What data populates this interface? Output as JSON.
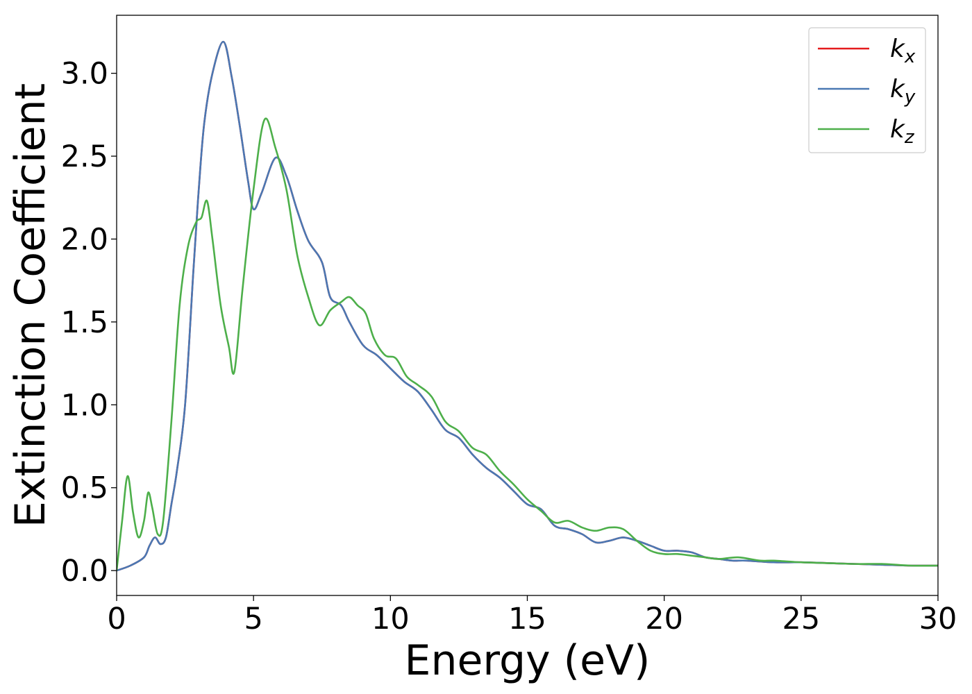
{
  "chart_data": {
    "type": "line",
    "xlabel": "Energy (eV)",
    "ylabel": "Extinction Coefficient",
    "xlim": [
      0,
      30
    ],
    "ylim": [
      -0.15,
      3.35
    ],
    "xticks": [
      0,
      5,
      10,
      15,
      20,
      25,
      30
    ],
    "yticks": [
      0.0,
      0.5,
      1.0,
      1.5,
      2.0,
      2.5,
      3.0
    ],
    "xtick_labels": [
      "0",
      "5",
      "10",
      "15",
      "20",
      "25",
      "30"
    ],
    "ytick_labels": [
      "0.0",
      "0.5",
      "1.0",
      "1.5",
      "2.0",
      "2.5",
      "3.0"
    ],
    "grid": false,
    "legend_position": "top-right",
    "series": [
      {
        "name": "k_x",
        "legend_base": "k",
        "legend_sub": "x",
        "color": "#e41a1c",
        "points": [
          [
            0,
            0
          ],
          [
            0.5,
            0.03
          ],
          [
            1,
            0.08
          ],
          [
            1.2,
            0.15
          ],
          [
            1.4,
            0.2
          ],
          [
            1.6,
            0.16
          ],
          [
            1.8,
            0.2
          ],
          [
            2,
            0.4
          ],
          [
            2.2,
            0.6
          ],
          [
            2.5,
            1.0
          ],
          [
            2.8,
            1.8
          ],
          [
            3,
            2.3
          ],
          [
            3.2,
            2.7
          ],
          [
            3.5,
            3.0
          ],
          [
            3.9,
            3.19
          ],
          [
            4.2,
            2.98
          ],
          [
            4.5,
            2.68
          ],
          [
            4.8,
            2.35
          ],
          [
            5.0,
            2.18
          ],
          [
            5.3,
            2.28
          ],
          [
            5.8,
            2.49
          ],
          [
            6.2,
            2.38
          ],
          [
            6.6,
            2.17
          ],
          [
            7,
            1.99
          ],
          [
            7.5,
            1.86
          ],
          [
            7.8,
            1.65
          ],
          [
            8.2,
            1.6
          ],
          [
            8.5,
            1.5
          ],
          [
            9,
            1.36
          ],
          [
            9.5,
            1.3
          ],
          [
            10,
            1.22
          ],
          [
            10.5,
            1.14
          ],
          [
            11,
            1.08
          ],
          [
            11.5,
            0.97
          ],
          [
            12,
            0.85
          ],
          [
            12.5,
            0.8
          ],
          [
            13,
            0.7
          ],
          [
            13.5,
            0.62
          ],
          [
            14,
            0.56
          ],
          [
            14.5,
            0.48
          ],
          [
            15,
            0.4
          ],
          [
            15.5,
            0.37
          ],
          [
            16,
            0.27
          ],
          [
            16.5,
            0.25
          ],
          [
            17,
            0.22
          ],
          [
            17.5,
            0.17
          ],
          [
            18,
            0.18
          ],
          [
            18.5,
            0.2
          ],
          [
            19,
            0.18
          ],
          [
            19.5,
            0.15
          ],
          [
            20,
            0.12
          ],
          [
            20.5,
            0.12
          ],
          [
            21,
            0.11
          ],
          [
            21.5,
            0.08
          ],
          [
            22,
            0.07
          ],
          [
            22.5,
            0.06
          ],
          [
            23,
            0.06
          ],
          [
            24,
            0.05
          ],
          [
            25,
            0.05
          ],
          [
            26,
            0.045
          ],
          [
            27,
            0.04
          ],
          [
            28,
            0.035
          ],
          [
            29,
            0.03
          ],
          [
            30,
            0.03
          ]
        ]
      },
      {
        "name": "k_y",
        "legend_base": "k",
        "legend_sub": "y",
        "color": "#4a78b3",
        "points": [
          [
            0,
            0
          ],
          [
            0.5,
            0.03
          ],
          [
            1,
            0.08
          ],
          [
            1.2,
            0.15
          ],
          [
            1.4,
            0.2
          ],
          [
            1.6,
            0.16
          ],
          [
            1.8,
            0.2
          ],
          [
            2,
            0.4
          ],
          [
            2.2,
            0.6
          ],
          [
            2.5,
            1.0
          ],
          [
            2.8,
            1.8
          ],
          [
            3,
            2.3
          ],
          [
            3.2,
            2.7
          ],
          [
            3.5,
            3.0
          ],
          [
            3.9,
            3.19
          ],
          [
            4.2,
            2.98
          ],
          [
            4.5,
            2.68
          ],
          [
            4.8,
            2.35
          ],
          [
            5.0,
            2.18
          ],
          [
            5.3,
            2.28
          ],
          [
            5.8,
            2.49
          ],
          [
            6.2,
            2.38
          ],
          [
            6.6,
            2.17
          ],
          [
            7,
            1.99
          ],
          [
            7.5,
            1.86
          ],
          [
            7.8,
            1.65
          ],
          [
            8.2,
            1.6
          ],
          [
            8.5,
            1.5
          ],
          [
            9,
            1.36
          ],
          [
            9.5,
            1.3
          ],
          [
            10,
            1.22
          ],
          [
            10.5,
            1.14
          ],
          [
            11,
            1.08
          ],
          [
            11.5,
            0.97
          ],
          [
            12,
            0.85
          ],
          [
            12.5,
            0.8
          ],
          [
            13,
            0.7
          ],
          [
            13.5,
            0.62
          ],
          [
            14,
            0.56
          ],
          [
            14.5,
            0.48
          ],
          [
            15,
            0.4
          ],
          [
            15.5,
            0.37
          ],
          [
            16,
            0.27
          ],
          [
            16.5,
            0.25
          ],
          [
            17,
            0.22
          ],
          [
            17.5,
            0.17
          ],
          [
            18,
            0.18
          ],
          [
            18.5,
            0.2
          ],
          [
            19,
            0.18
          ],
          [
            19.5,
            0.15
          ],
          [
            20,
            0.12
          ],
          [
            20.5,
            0.12
          ],
          [
            21,
            0.11
          ],
          [
            21.5,
            0.08
          ],
          [
            22,
            0.07
          ],
          [
            22.5,
            0.06
          ],
          [
            23,
            0.06
          ],
          [
            24,
            0.05
          ],
          [
            25,
            0.05
          ],
          [
            26,
            0.045
          ],
          [
            27,
            0.04
          ],
          [
            28,
            0.035
          ],
          [
            29,
            0.03
          ],
          [
            30,
            0.03
          ]
        ]
      },
      {
        "name": "k_z",
        "legend_base": "k",
        "legend_sub": "z",
        "color": "#4daf4a",
        "points": [
          [
            0,
            0
          ],
          [
            0.2,
            0.3
          ],
          [
            0.4,
            0.57
          ],
          [
            0.6,
            0.35
          ],
          [
            0.8,
            0.2
          ],
          [
            1,
            0.3
          ],
          [
            1.15,
            0.47
          ],
          [
            1.3,
            0.38
          ],
          [
            1.5,
            0.22
          ],
          [
            1.7,
            0.3
          ],
          [
            2,
            0.9
          ],
          [
            2.3,
            1.6
          ],
          [
            2.6,
            1.95
          ],
          [
            2.9,
            2.1
          ],
          [
            3.1,
            2.13
          ],
          [
            3.3,
            2.23
          ],
          [
            3.5,
            2.0
          ],
          [
            3.8,
            1.6
          ],
          [
            4.1,
            1.35
          ],
          [
            4.3,
            1.2
          ],
          [
            4.6,
            1.7
          ],
          [
            5,
            2.3
          ],
          [
            5.4,
            2.72
          ],
          [
            5.8,
            2.55
          ],
          [
            6.2,
            2.3
          ],
          [
            6.6,
            1.9
          ],
          [
            7,
            1.65
          ],
          [
            7.4,
            1.48
          ],
          [
            7.8,
            1.57
          ],
          [
            8.2,
            1.62
          ],
          [
            8.5,
            1.65
          ],
          [
            8.8,
            1.6
          ],
          [
            9.1,
            1.55
          ],
          [
            9.4,
            1.4
          ],
          [
            9.8,
            1.3
          ],
          [
            10.2,
            1.28
          ],
          [
            10.6,
            1.17
          ],
          [
            11,
            1.12
          ],
          [
            11.5,
            1.05
          ],
          [
            12,
            0.9
          ],
          [
            12.5,
            0.84
          ],
          [
            13,
            0.74
          ],
          [
            13.5,
            0.7
          ],
          [
            14,
            0.6
          ],
          [
            14.5,
            0.52
          ],
          [
            15,
            0.43
          ],
          [
            15.5,
            0.36
          ],
          [
            16,
            0.29
          ],
          [
            16.5,
            0.3
          ],
          [
            17,
            0.26
          ],
          [
            17.5,
            0.24
          ],
          [
            18,
            0.26
          ],
          [
            18.5,
            0.25
          ],
          [
            19,
            0.18
          ],
          [
            19.5,
            0.12
          ],
          [
            20,
            0.1
          ],
          [
            20.5,
            0.1
          ],
          [
            21,
            0.09
          ],
          [
            21.5,
            0.08
          ],
          [
            22,
            0.07
          ],
          [
            22.7,
            0.08
          ],
          [
            23.5,
            0.06
          ],
          [
            24,
            0.06
          ],
          [
            25,
            0.05
          ],
          [
            26,
            0.045
          ],
          [
            27,
            0.04
          ],
          [
            28,
            0.04
          ],
          [
            29,
            0.03
          ],
          [
            30,
            0.03
          ]
        ]
      }
    ]
  }
}
